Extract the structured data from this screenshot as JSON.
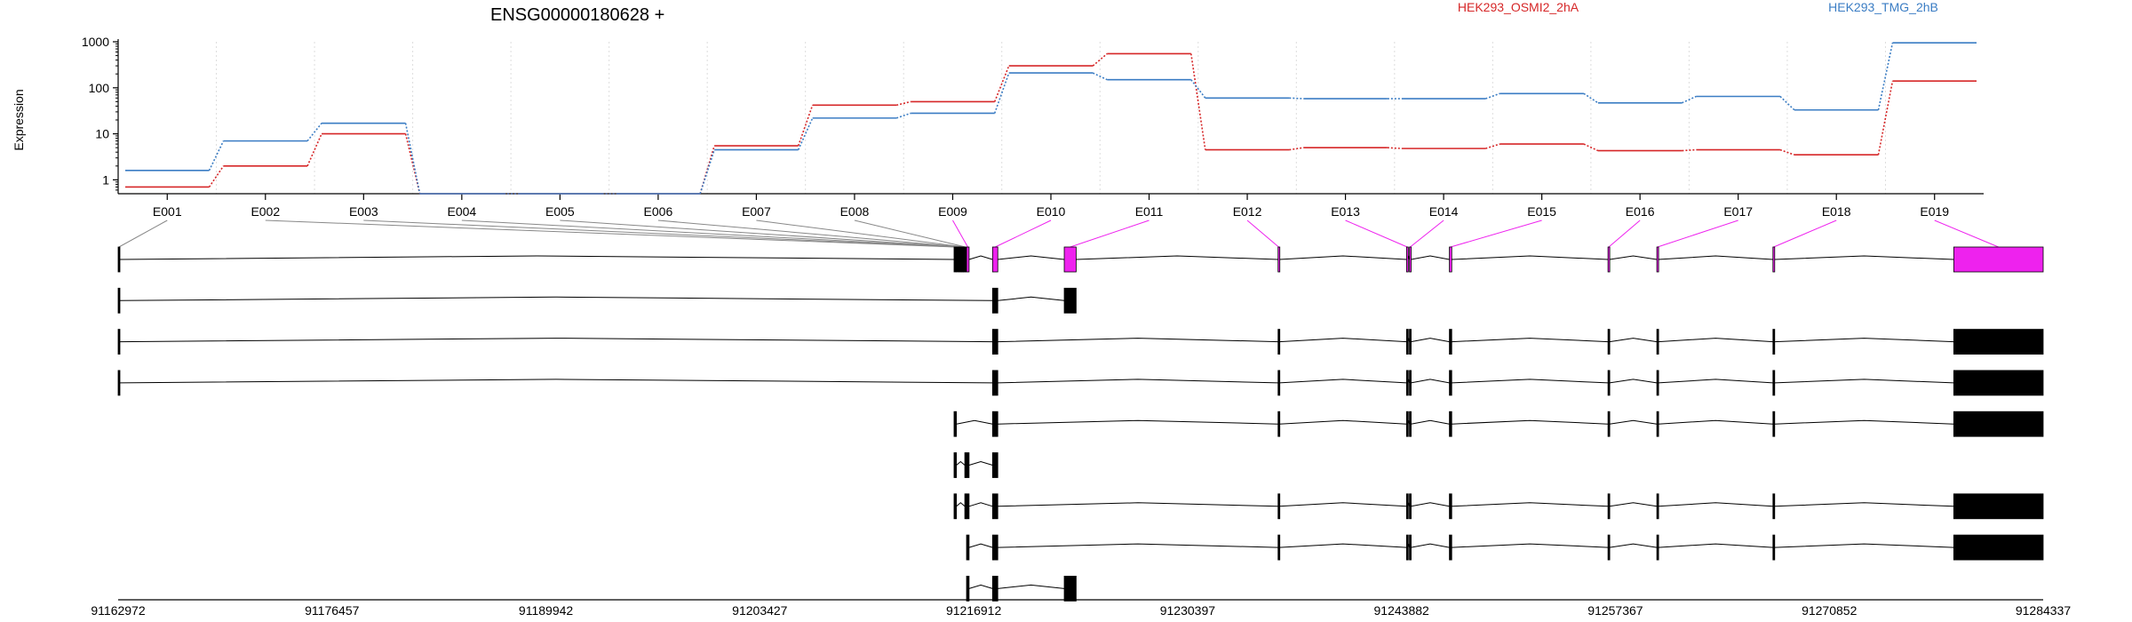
{
  "chart_data": {
    "type": "line",
    "title": "ENSG00000180628 +",
    "ylabel": "Expression",
    "xlabel": "",
    "y_scale": "log",
    "ylim": [
      0.5,
      1000
    ],
    "y_ticks": [
      1,
      10,
      100,
      1000
    ],
    "y_tick_labels": [
      "1",
      "10",
      "100",
      "1000"
    ],
    "grid": "vertical dotted lines at exon boundaries",
    "legend_position": "top",
    "categories": [
      "E001",
      "E002",
      "E003",
      "E004",
      "E005",
      "E006",
      "E007",
      "E008",
      "E009",
      "E010",
      "E011",
      "E012",
      "E013",
      "E014",
      "E015",
      "E016",
      "E017",
      "E018",
      "E019"
    ],
    "series": [
      {
        "name": "HEK293_OSMI2_2hA",
        "color": "#d62728",
        "values": [
          0.7,
          2,
          10,
          0.5,
          0.5,
          0.5,
          5.5,
          42,
          50,
          300,
          550,
          4.5,
          5,
          4.8,
          6,
          4.3,
          4.5,
          3.5,
          140
        ]
      },
      {
        "name": "HEK293_TMG_2hB",
        "color": "#3b7dc4",
        "values": [
          1.6,
          7,
          17,
          0.5,
          0.5,
          0.5,
          4.5,
          22,
          28,
          210,
          150,
          60,
          58,
          58,
          75,
          47,
          65,
          33,
          950
        ]
      }
    ],
    "exon_highlight_color": "#ee22ee",
    "highlighted_exons": [
      "E009",
      "E010",
      "E011",
      "E012",
      "E013",
      "E014",
      "E015",
      "E016",
      "E017",
      "E018",
      "E019"
    ],
    "genomic_axis": {
      "range": [
        91162972,
        91284337
      ],
      "tick_labels": [
        "91162972",
        "91176457",
        "91189942",
        "91203427",
        "91216912",
        "91230397",
        "91243882",
        "91257367",
        "91270852",
        "91284337"
      ]
    },
    "exon_coords": [
      [
        91162972,
        91163072
      ],
      [
        91215672,
        91215822
      ],
      [
        91215830,
        91215960
      ],
      [
        91215970,
        91216060
      ],
      [
        91216070,
        91216150
      ],
      [
        91216160,
        91216240
      ],
      [
        91216250,
        91216340
      ],
      [
        91216350,
        91216440
      ],
      [
        91216460,
        91216620
      ],
      [
        91218100,
        91218430
      ],
      [
        91222620,
        91223370
      ],
      [
        91236100,
        91236180
      ],
      [
        91244200,
        91244290
      ],
      [
        91244380,
        91244480
      ],
      [
        91246900,
        91247050
      ],
      [
        91256900,
        91257000
      ],
      [
        91259980,
        91260070
      ],
      [
        91267300,
        91267400
      ],
      [
        91278700,
        91284337
      ]
    ],
    "transcripts": [
      [
        1,
        2,
        3,
        4,
        5,
        6,
        7,
        8,
        9,
        10,
        11,
        12,
        13,
        14,
        15,
        16,
        17,
        18,
        19
      ],
      [
        1,
        10,
        11
      ],
      [
        1,
        10,
        12,
        13,
        14,
        15,
        16,
        17,
        18,
        19
      ],
      [
        1,
        10,
        12,
        13,
        14,
        15,
        16,
        17,
        18,
        19
      ],
      [
        2,
        10,
        12,
        13,
        14,
        15,
        16,
        17,
        18,
        19
      ],
      [
        2,
        8,
        9,
        10
      ],
      [
        2,
        8,
        9,
        10,
        12,
        13,
        14,
        15,
        16,
        17,
        18,
        19
      ],
      [
        9,
        10,
        12,
        13,
        14,
        15,
        16,
        17,
        18,
        19
      ],
      [
        9,
        10,
        11
      ]
    ]
  }
}
